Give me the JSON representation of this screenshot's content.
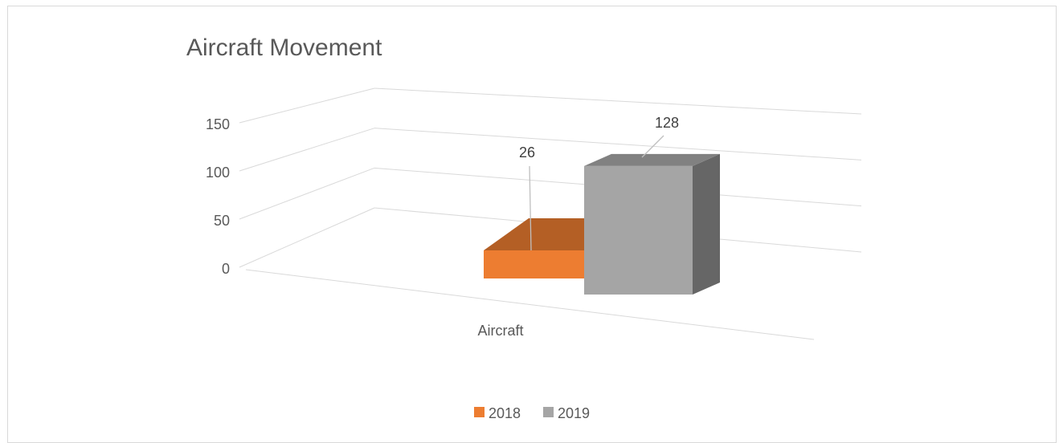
{
  "chart_data": {
    "type": "bar",
    "title": "Aircraft Movement",
    "categories": [
      "Aircraft"
    ],
    "series": [
      {
        "name": "2018",
        "values": [
          26
        ],
        "color": "#ed7d31"
      },
      {
        "name": "2019",
        "values": [
          128
        ],
        "color": "#a5a5a5"
      }
    ],
    "ylim": [
      0,
      150
    ],
    "yticks": [
      "0",
      "50",
      "100",
      "150"
    ],
    "data_labels": [
      "26",
      "128"
    ],
    "grid": true,
    "legend_position": "bottom",
    "style": "3d-column"
  }
}
